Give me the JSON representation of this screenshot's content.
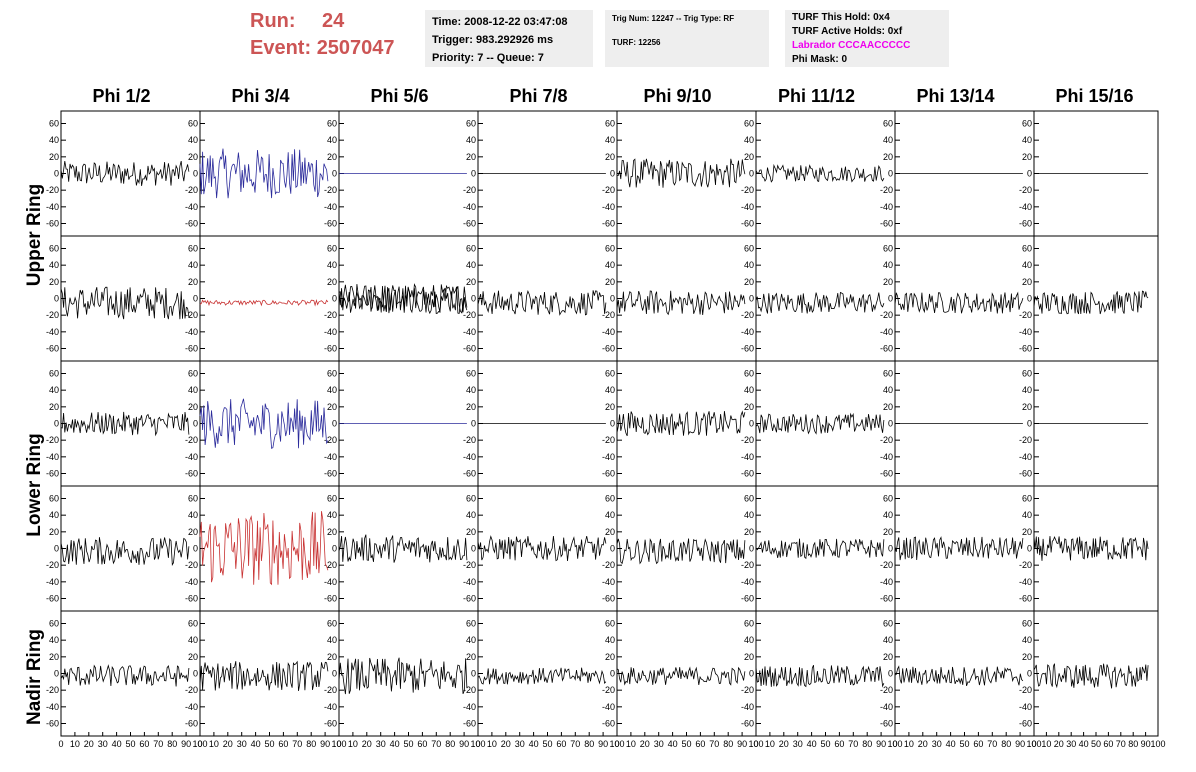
{
  "header": {
    "run_label": "Run:",
    "run_value": "24",
    "event_label": "Event:",
    "event_value": "2507047"
  },
  "info_time": {
    "line1": "Time: 2008-12-22 03:47:08",
    "line2": "Trigger: 983.292926 ms",
    "line3": "Priority: 7 -- Queue: 7"
  },
  "info_trig": {
    "line1": "Trig Num: 12247 -- Trig Type: RF",
    "line2": "TURF: 12256"
  },
  "info_turf": {
    "line1": "TURF This Hold: 0x4",
    "line2": "TURF Active Holds: 0xf",
    "line3": "Labrador CCCAACCCCC",
    "line4": "Phi Mask: 0"
  },
  "colors": {
    "trace": "#000000",
    "blue_trace": "#2b2b9b",
    "red_trace": "#c83232",
    "header_red": "#cc5555",
    "magenta": "#ee00ee",
    "info_bg": "#eeeeee"
  },
  "chart_data": {
    "type": "line",
    "columns": [
      "Phi 1/2",
      "Phi 3/4",
      "Phi 5/6",
      "Phi 7/8",
      "Phi 9/10",
      "Phi 11/12",
      "Phi 13/14",
      "Phi 15/16"
    ],
    "rows": [
      "Upper Ring",
      "Lower Ring",
      "Nadir Ring"
    ],
    "xlim": [
      0,
      100
    ],
    "ylim": [
      -75,
      75
    ],
    "yticks": [
      -60,
      -40,
      -20,
      0,
      20,
      40,
      60
    ],
    "ytick_labels": [
      "-60",
      "-40",
      "-20",
      "0",
      "20",
      "40",
      "60"
    ],
    "xticks": [
      0,
      10,
      20,
      30,
      40,
      50,
      60,
      70,
      80,
      90,
      100
    ],
    "xtick_labels": [
      "0",
      "10",
      "20",
      "30",
      "40",
      "50",
      "60",
      "70",
      "80",
      "90",
      "100"
    ],
    "panels": [
      {
        "row": 0,
        "col": 0,
        "color": "black",
        "amplitude": 15,
        "offset": 0
      },
      {
        "row": 0,
        "col": 1,
        "color": "blue",
        "amplitude": 30,
        "offset": 0
      },
      {
        "row": 0,
        "col": 2,
        "color": "blue",
        "amplitude": 0,
        "offset": 0
      },
      {
        "row": 0,
        "col": 3,
        "color": "black",
        "amplitude": 0,
        "offset": 0
      },
      {
        "row": 0,
        "col": 4,
        "color": "black",
        "amplitude": 18,
        "offset": 0
      },
      {
        "row": 0,
        "col": 5,
        "color": "black",
        "amplitude": 10,
        "offset": 0
      },
      {
        "row": 0,
        "col": 6,
        "color": "black",
        "amplitude": 0,
        "offset": 0
      },
      {
        "row": 0,
        "col": 7,
        "color": "black",
        "amplitude": 0,
        "offset": 0
      },
      {
        "row": 1,
        "col": 0,
        "color": "black",
        "amplitude": 20,
        "offset": -5
      },
      {
        "row": 1,
        "col": 1,
        "color": "red",
        "amplitude": 3,
        "offset": -5
      },
      {
        "row": 1,
        "col": 2,
        "color": "black",
        "amplitude": 18,
        "offset": 0
      },
      {
        "row": 1,
        "col": 2,
        "color": "black",
        "amplitude": 18,
        "offset": 0
      },
      {
        "row": 1,
        "col": 3,
        "color": "black",
        "amplitude": 15,
        "offset": -5
      },
      {
        "row": 1,
        "col": 4,
        "color": "black",
        "amplitude": 15,
        "offset": -5
      },
      {
        "row": 1,
        "col": 5,
        "color": "black",
        "amplitude": 13,
        "offset": -5
      },
      {
        "row": 1,
        "col": 6,
        "color": "black",
        "amplitude": 13,
        "offset": -5
      },
      {
        "row": 1,
        "col": 7,
        "color": "black",
        "amplitude": 14,
        "offset": -5
      },
      {
        "row": 2,
        "col": 0,
        "color": "black",
        "amplitude": 14,
        "offset": 0
      },
      {
        "row": 2,
        "col": 1,
        "color": "blue",
        "amplitude": 30,
        "offset": 0
      },
      {
        "row": 2,
        "col": 2,
        "color": "blue",
        "amplitude": 0,
        "offset": 0
      },
      {
        "row": 2,
        "col": 3,
        "color": "black",
        "amplitude": 0,
        "offset": 0
      },
      {
        "row": 2,
        "col": 4,
        "color": "black",
        "amplitude": 15,
        "offset": 0
      },
      {
        "row": 2,
        "col": 5,
        "color": "black",
        "amplitude": 12,
        "offset": 0
      },
      {
        "row": 2,
        "col": 6,
        "color": "black",
        "amplitude": 0,
        "offset": 0
      },
      {
        "row": 2,
        "col": 7,
        "color": "black",
        "amplitude": 0,
        "offset": 0
      },
      {
        "row": 3,
        "col": 0,
        "color": "black",
        "amplitude": 17,
        "offset": -3
      },
      {
        "row": 3,
        "col": 1,
        "color": "red",
        "amplitude": 45,
        "offset": 0
      },
      {
        "row": 3,
        "col": 2,
        "color": "black",
        "amplitude": 17,
        "offset": 0
      },
      {
        "row": 3,
        "col": 3,
        "color": "black",
        "amplitude": 15,
        "offset": 0
      },
      {
        "row": 3,
        "col": 4,
        "color": "black",
        "amplitude": 15,
        "offset": -3
      },
      {
        "row": 3,
        "col": 5,
        "color": "black",
        "amplitude": 12,
        "offset": 0
      },
      {
        "row": 3,
        "col": 6,
        "color": "black",
        "amplitude": 14,
        "offset": 0
      },
      {
        "row": 3,
        "col": 7,
        "color": "black",
        "amplitude": 15,
        "offset": 0
      },
      {
        "row": 4,
        "col": 0,
        "color": "black",
        "amplitude": 13,
        "offset": -3
      },
      {
        "row": 4,
        "col": 1,
        "color": "black",
        "amplitude": 18,
        "offset": -3
      },
      {
        "row": 4,
        "col": 2,
        "color": "black",
        "amplitude": 22,
        "offset": -3
      },
      {
        "row": 4,
        "col": 3,
        "color": "black",
        "amplitude": 10,
        "offset": -3
      },
      {
        "row": 4,
        "col": 4,
        "color": "black",
        "amplitude": 11,
        "offset": -3
      },
      {
        "row": 4,
        "col": 5,
        "color": "black",
        "amplitude": 13,
        "offset": -3
      },
      {
        "row": 4,
        "col": 6,
        "color": "black",
        "amplitude": 12,
        "offset": -3
      },
      {
        "row": 4,
        "col": 7,
        "color": "black",
        "amplitude": 15,
        "offset": -3
      }
    ]
  }
}
